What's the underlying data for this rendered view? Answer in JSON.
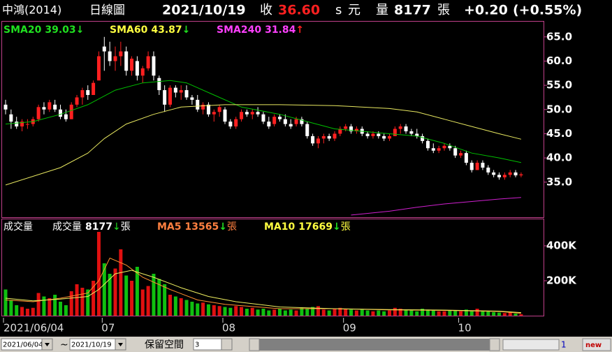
{
  "header": {
    "stock": "中鴻(2014)",
    "period": "日線圖",
    "date": "2021/10/19",
    "close_label": "收",
    "close": "36.60",
    "close_flag": "s",
    "close_unit": "元",
    "volume_label": "量",
    "volume": "8177",
    "volume_unit": "張",
    "change": "+0.20",
    "change_pct": "(+0.55%)"
  },
  "chart_data": [
    {
      "type": "candlestick",
      "up_color": "#ff2020",
      "down_color": "#ffffff",
      "open": [
        51,
        49,
        47.5,
        46.5,
        47,
        47,
        48,
        50.5,
        50,
        51,
        50,
        49,
        48,
        51,
        52.5,
        54,
        53,
        56,
        63,
        62,
        60,
        61,
        62,
        58,
        60,
        57,
        58.5,
        61,
        56.5,
        54,
        51,
        54.5,
        53.5,
        54,
        52.5,
        52,
        50,
        51,
        49,
        49.5,
        50,
        47.5,
        46.5,
        48,
        49.5,
        49,
        49.5,
        49,
        47.5,
        47,
        48.5,
        48,
        47,
        47,
        48,
        47,
        44.5,
        43,
        44,
        44.5,
        44,
        45,
        46,
        46.5,
        45.5,
        46,
        45,
        44.5,
        45,
        44.5,
        44,
        44.5,
        46,
        46.5,
        45.5,
        45,
        44.5,
        43.5,
        42,
        41.5,
        42,
        42.5,
        42,
        40.5,
        41,
        39,
        37.5,
        39,
        38,
        37,
        36.5,
        36,
        36.5,
        37,
        36.4
      ],
      "high": [
        52,
        50,
        48.5,
        48,
        48,
        48.5,
        51,
        51.5,
        52,
        52,
        51,
        50,
        51.5,
        53,
        54.5,
        55,
        56,
        62,
        65,
        64,
        63,
        64,
        63,
        61,
        61,
        59,
        62,
        62,
        57,
        55,
        55,
        55,
        55,
        55,
        53,
        53,
        51.5,
        51.5,
        50,
        51,
        50.5,
        48,
        48.5,
        50,
        50,
        50,
        50.5,
        49.5,
        48.5,
        49,
        49,
        49,
        48,
        48.5,
        48.5,
        47.5,
        45,
        44.5,
        45,
        45,
        45.5,
        46.5,
        47,
        47,
        46.5,
        46.5,
        45.5,
        45.5,
        45.5,
        45,
        45,
        46.5,
        47,
        47,
        46,
        46,
        45,
        44,
        43,
        42.5,
        43,
        43,
        42.5,
        41.5,
        41.5,
        39.5,
        39.5,
        39.5,
        38.5,
        37.5,
        37,
        37,
        37.5,
        37.5,
        37
      ],
      "low": [
        49,
        46,
        46,
        45.5,
        46,
        46.5,
        47.5,
        49,
        49.5,
        49.5,
        48,
        47.5,
        48,
        50.5,
        51,
        52,
        53,
        56,
        58,
        59,
        58,
        59,
        57,
        57,
        56,
        55.5,
        58,
        56,
        53,
        49.5,
        50.5,
        52.5,
        52,
        52,
        51,
        49.5,
        49,
        48.5,
        47.5,
        48.5,
        47,
        46,
        46,
        47.5,
        48.5,
        48,
        48.5,
        47,
        46,
        46.5,
        47.5,
        46.5,
        46,
        46.5,
        46.5,
        44,
        42.5,
        42,
        43,
        43.5,
        43.5,
        44.5,
        45.5,
        45,
        45,
        44.5,
        44,
        44,
        44,
        43.5,
        43.5,
        44.5,
        45,
        45,
        44.5,
        44,
        43,
        41.5,
        41,
        41,
        41.5,
        41.5,
        40,
        40,
        38.5,
        37,
        37.5,
        37.5,
        36.5,
        36,
        35.5,
        35.5,
        36,
        36,
        36
      ],
      "close": [
        50,
        47.5,
        46.5,
        47.5,
        47,
        48,
        50.5,
        50,
        51.5,
        50,
        48.5,
        48,
        51,
        52.5,
        54,
        53,
        55.5,
        61,
        62,
        60,
        61,
        62,
        58,
        60.5,
        57,
        58.5,
        61,
        57,
        54,
        51,
        54.5,
        53.5,
        54,
        52.5,
        52,
        50,
        51,
        49,
        49.5,
        50.5,
        47.5,
        46.5,
        48,
        49.5,
        49,
        49.5,
        49,
        47.5,
        46.5,
        48.5,
        48,
        47,
        46.5,
        48,
        47,
        44.5,
        43,
        44,
        44.5,
        44,
        45,
        46,
        46.5,
        45.5,
        46,
        45,
        44.5,
        45,
        44.5,
        44,
        44.5,
        46,
        46.5,
        45.5,
        45,
        44.5,
        43.5,
        42,
        41.5,
        42,
        42.5,
        42,
        40.5,
        41,
        39,
        37.5,
        39,
        38,
        37,
        36.5,
        36,
        36.5,
        37,
        36.4,
        36.6
      ],
      "lines": [
        {
          "name": "SMA20",
          "color": "#00c000",
          "label_color": "#20e020",
          "trend": "↓",
          "trend_color": "#20e020",
          "x": [
            0,
            5,
            10,
            15,
            20,
            25,
            30,
            33,
            38,
            43,
            50,
            55,
            60,
            65,
            70,
            75,
            80,
            85,
            90,
            94
          ],
          "values": [
            47,
            47.5,
            49,
            51,
            54,
            55.5,
            56,
            55.5,
            53,
            50.5,
            49,
            47.5,
            46,
            45.5,
            45,
            44.5,
            43,
            41,
            40,
            39.03
          ]
        },
        {
          "name": "SMA60",
          "color": "#e8e860",
          "label_color": "#ffff40",
          "trend": "↓",
          "trend_color": "#20e020",
          "x": [
            0,
            10,
            15,
            18,
            22,
            27,
            32,
            40,
            50,
            60,
            70,
            75,
            80,
            85,
            90,
            94
          ],
          "values": [
            34.4,
            38,
            41,
            44,
            47,
            49,
            50.5,
            51,
            51,
            50.8,
            50.2,
            49.5,
            48,
            46.5,
            45,
            43.87
          ]
        },
        {
          "name": "SMA240",
          "color": "#d020d0",
          "label_color": "#ff40ff",
          "trend": "↑",
          "trend_color": "#ff2020",
          "x": [
            63,
            70,
            75,
            80,
            85,
            90,
            94
          ],
          "values": [
            28.2,
            29,
            29.8,
            30.5,
            31,
            31.5,
            31.84
          ]
        }
      ],
      "ylim": [
        27.9,
        68.0
      ],
      "yticks": [
        {
          "value": 65,
          "label": "65.0"
        },
        {
          "value": 60,
          "label": "60.0"
        },
        {
          "value": 55,
          "label": "55.0"
        },
        {
          "value": 50,
          "label": "50.0"
        },
        {
          "value": 45,
          "label": "45.0"
        },
        {
          "value": 40,
          "label": "40.0"
        },
        {
          "value": 35,
          "label": "35.0"
        }
      ]
    },
    {
      "type": "bar",
      "title": "成交量",
      "name": "成交量",
      "unit": "張",
      "trend": "↓",
      "trend_color": "#20e020",
      "up_color": "#e01010",
      "down_color": "#10c010",
      "categories": [
        "2021/06/04",
        null,
        null,
        null,
        null,
        null,
        null,
        null,
        null,
        null,
        null,
        null,
        null,
        null,
        null,
        null,
        null,
        null,
        "07",
        null,
        null,
        null,
        null,
        null,
        null,
        null,
        null,
        null,
        null,
        null,
        null,
        null,
        null,
        null,
        null,
        null,
        null,
        null,
        null,
        null,
        "08",
        null,
        null,
        null,
        null,
        null,
        null,
        null,
        null,
        null,
        null,
        null,
        null,
        null,
        null,
        null,
        null,
        null,
        null,
        null,
        null,
        null,
        "09",
        null,
        null,
        null,
        null,
        null,
        null,
        null,
        null,
        null,
        null,
        null,
        null,
        null,
        null,
        null,
        null,
        null,
        null,
        null,
        null,
        "10",
        null,
        null,
        null,
        null,
        null,
        null,
        null,
        null,
        null,
        null,
        null
      ],
      "values": [
        150000,
        90000,
        60000,
        50000,
        40000,
        45000,
        130000,
        110000,
        100000,
        120000,
        80000,
        60000,
        140000,
        180000,
        160000,
        150000,
        200000,
        480000,
        300000,
        240000,
        270000,
        380000,
        230000,
        200000,
        280000,
        150000,
        170000,
        240000,
        210000,
        180000,
        120000,
        110000,
        100000,
        90000,
        80000,
        70000,
        75000,
        65000,
        60000,
        55000,
        50000,
        45000,
        55000,
        50000,
        40000,
        45000,
        35000,
        40000,
        30000,
        35000,
        40000,
        30000,
        35000,
        30000,
        45000,
        40000,
        50000,
        55000,
        35000,
        30000,
        40000,
        45000,
        40000,
        35000,
        30000,
        35000,
        30000,
        25000,
        30000,
        25000,
        30000,
        45000,
        40000,
        35000,
        30000,
        25000,
        40000,
        35000,
        30000,
        25000,
        25000,
        30000,
        30000,
        25000,
        35000,
        30000,
        40000,
        28000,
        25000,
        20000,
        18000,
        15000,
        18000,
        12000,
        8177
      ],
      "lines": [
        {
          "name": "MA5",
          "color": "#ff9030",
          "label_color": "#ff8040",
          "trend": "↓",
          "trend_color": "#20e020",
          "x": [
            0,
            5,
            10,
            15,
            17,
            19,
            22,
            25,
            30,
            35,
            40,
            50,
            60,
            70,
            80,
            90,
            94
          ],
          "values": [
            90000,
            80000,
            100000,
            130000,
            200000,
            330000,
            290000,
            220000,
            150000,
            90000,
            65000,
            40000,
            40000,
            33000,
            30000,
            24000,
            13565
          ]
        },
        {
          "name": "MA10",
          "color": "#f0f060",
          "label_color": "#ffff40",
          "trend": "↓",
          "trend_color": "#20e020",
          "x": [
            0,
            5,
            10,
            15,
            17,
            20,
            23,
            27,
            32,
            37,
            42,
            50,
            60,
            70,
            80,
            90,
            94
          ],
          "values": [
            100000,
            85000,
            95000,
            110000,
            150000,
            240000,
            260000,
            220000,
            160000,
            110000,
            80000,
            50000,
            40000,
            35000,
            32000,
            26000,
            17669
          ]
        }
      ],
      "ylim": [
        0,
        548000
      ],
      "yticks": [
        {
          "value": 400000,
          "label": "400K"
        },
        {
          "value": 200000,
          "label": "200K"
        }
      ]
    }
  ],
  "toolbar": {
    "start_date": "2021/06/04",
    "separator": "~",
    "end_date": "2021/10/19",
    "reserve_label": "保留空間",
    "reserve_value": "3",
    "page": "1",
    "badge": "new"
  }
}
